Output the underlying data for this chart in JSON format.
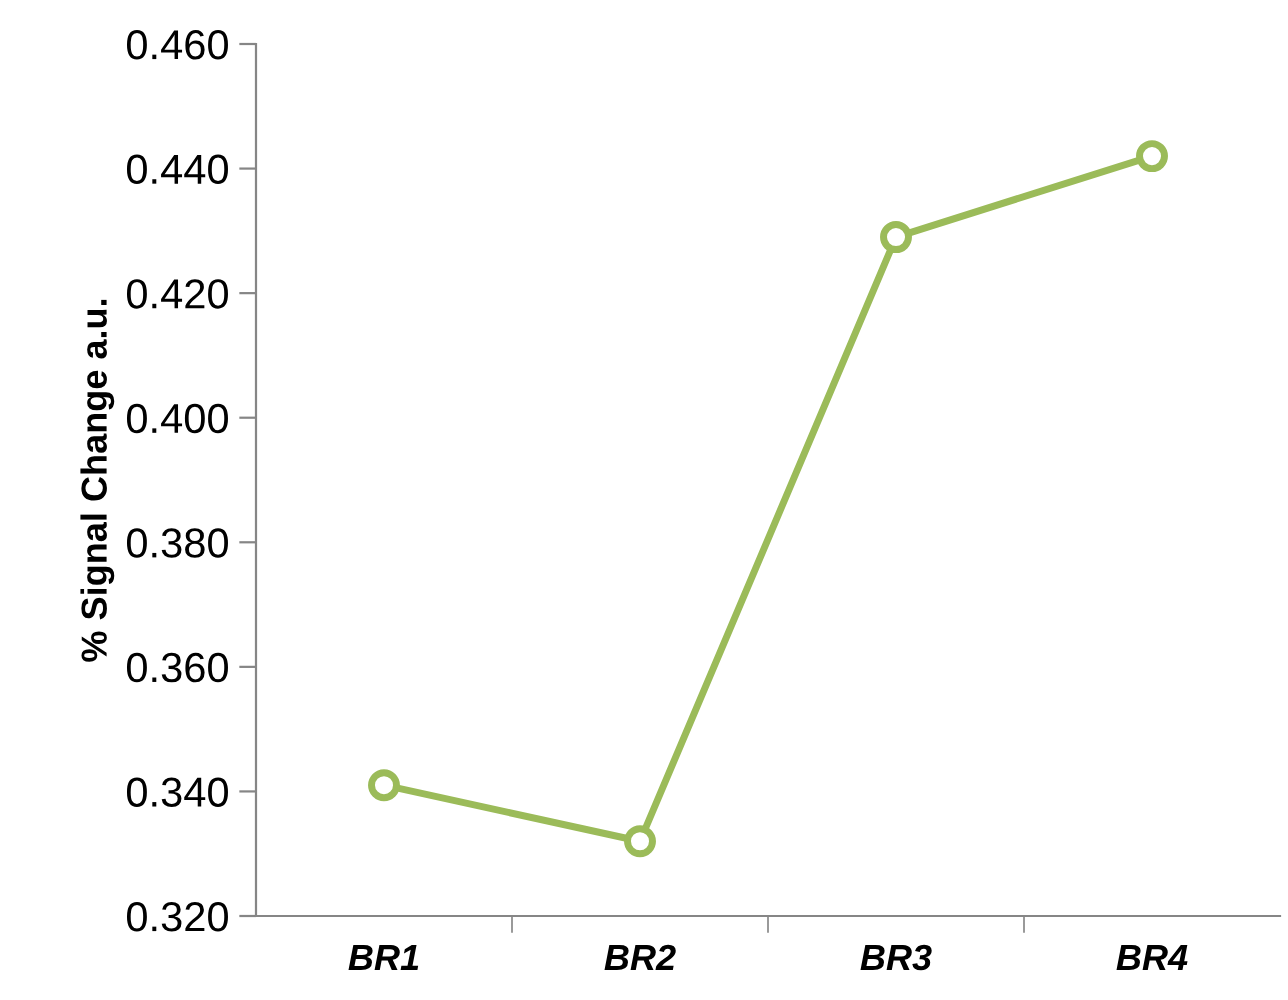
{
  "chart_data": {
    "type": "line",
    "ylabel": "% Signal Change a.u.",
    "categories": [
      "BR1",
      "BR2",
      "BR3",
      "BR4"
    ],
    "series": [
      {
        "color": "#9bbb59",
        "values": [
          0.341,
          0.332,
          0.429,
          0.442
        ]
      }
    ],
    "ylim": [
      0.32,
      0.46
    ],
    "yticks": [
      {
        "value": 0.32,
        "label": "0.320"
      },
      {
        "value": 0.34,
        "label": "0.340"
      },
      {
        "value": 0.36,
        "label": "0.360"
      },
      {
        "value": 0.38,
        "label": "0.380"
      },
      {
        "value": 0.4,
        "label": "0.400"
      },
      {
        "value": 0.42,
        "label": "0.420"
      },
      {
        "value": 0.44,
        "label": "0.440"
      },
      {
        "value": 0.46,
        "label": "0.460"
      }
    ],
    "grid": false,
    "legend": false,
    "marker": "circle",
    "line_style": "solid"
  }
}
